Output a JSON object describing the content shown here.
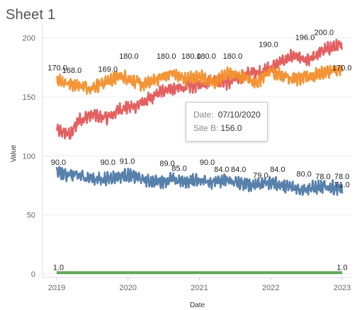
{
  "sheet": {
    "title": "Sheet 1"
  },
  "tooltip": {
    "date_label": "Date:",
    "date_value": "07/10/2020",
    "series_label": "Site B:",
    "series_value": "156.0"
  },
  "chart_data": {
    "type": "line",
    "xlabel": "Date",
    "ylabel": "Value",
    "x_ticks": [
      "2019",
      "2020",
      "2021",
      "2022",
      "2023"
    ],
    "x_range": [
      "2019-01-01",
      "2023-01-01"
    ],
    "y_ticks": [
      0,
      50,
      100,
      150,
      200
    ],
    "ylim": [
      -3,
      207
    ],
    "grid": "horizontal",
    "legend": "none",
    "series": [
      {
        "color": "#e15759",
        "keyframes": [
          [
            2019.0,
            122
          ],
          [
            2019.2,
            118
          ],
          [
            2019.3,
            130
          ],
          [
            2019.5,
            135
          ],
          [
            2019.7,
            132
          ],
          [
            2019.9,
            140
          ],
          [
            2020.1,
            142
          ],
          [
            2020.3,
            148
          ],
          [
            2020.5,
            156
          ],
          [
            2020.8,
            158
          ],
          [
            2021.0,
            160
          ],
          [
            2021.2,
            165
          ],
          [
            2021.4,
            162
          ],
          [
            2021.7,
            170
          ],
          [
            2021.9,
            172
          ],
          [
            2022.1,
            178
          ],
          [
            2022.3,
            185
          ],
          [
            2022.5,
            180
          ],
          [
            2022.7,
            188
          ],
          [
            2022.85,
            192
          ],
          [
            2023.0,
            193
          ]
        ],
        "labels": [
          {
            "x": "2021-12-20",
            "value": "190.0"
          },
          {
            "x": "2022-06-25",
            "value": "196.0"
          },
          {
            "x": "2022-09-30",
            "value": "200.0"
          }
        ]
      },
      {
        "color": "#f28e2b",
        "keyframes": [
          [
            2019.0,
            165
          ],
          [
            2019.15,
            162
          ],
          [
            2019.3,
            160
          ],
          [
            2019.5,
            158
          ],
          [
            2019.7,
            163
          ],
          [
            2019.9,
            168
          ],
          [
            2020.0,
            166
          ],
          [
            2020.2,
            160
          ],
          [
            2020.4,
            165
          ],
          [
            2020.6,
            170
          ],
          [
            2020.8,
            165
          ],
          [
            2021.0,
            168
          ],
          [
            2021.2,
            162
          ],
          [
            2021.4,
            170
          ],
          [
            2021.6,
            168
          ],
          [
            2021.8,
            162
          ],
          [
            2022.0,
            172
          ],
          [
            2022.2,
            168
          ],
          [
            2022.4,
            165
          ],
          [
            2022.6,
            168
          ],
          [
            2022.8,
            172
          ],
          [
            2023.0,
            172
          ]
        ],
        "labels": [
          {
            "x": "2019-01-05",
            "value": "170.0"
          },
          {
            "x": "2019-03-20",
            "value": "168.0"
          },
          {
            "x": "2019-09-20",
            "value": "169.0"
          },
          {
            "x": "2020-01-05",
            "value": "180.0"
          },
          {
            "x": "2020-07-15",
            "value": "180.0"
          },
          {
            "x": "2020-11-20",
            "value": "180.0"
          },
          {
            "x": "2021-02-05",
            "value": "180.0"
          },
          {
            "x": "2021-06-20",
            "value": "180.0"
          },
          {
            "x": "2022-12-31",
            "value": "170.0"
          }
        ]
      },
      {
        "color": "#4e79a7",
        "keyframes": [
          [
            2019.0,
            86
          ],
          [
            2019.2,
            84
          ],
          [
            2019.4,
            82
          ],
          [
            2019.6,
            80
          ],
          [
            2019.8,
            82
          ],
          [
            2020.0,
            84
          ],
          [
            2020.2,
            80
          ],
          [
            2020.4,
            78
          ],
          [
            2020.6,
            80
          ],
          [
            2020.8,
            78
          ],
          [
            2021.0,
            80
          ],
          [
            2021.2,
            78
          ],
          [
            2021.4,
            79
          ],
          [
            2021.6,
            76
          ],
          [
            2021.8,
            76
          ],
          [
            2022.0,
            78
          ],
          [
            2022.2,
            74
          ],
          [
            2022.4,
            72
          ],
          [
            2022.6,
            73
          ],
          [
            2022.8,
            74
          ],
          [
            2023.0,
            72
          ]
        ],
        "labels": [
          {
            "x": "2019-01-10",
            "value": "90.0"
          },
          {
            "x": "2019-09-20",
            "value": "90.0"
          },
          {
            "x": "2019-12-28",
            "value": "91.0"
          },
          {
            "x": "2020-07-20",
            "value": "89.0"
          },
          {
            "x": "2020-09-20",
            "value": "85.0"
          },
          {
            "x": "2021-02-10",
            "value": "90.0"
          },
          {
            "x": "2021-04-25",
            "value": "84.0"
          },
          {
            "x": "2021-07-20",
            "value": "84.0"
          },
          {
            "x": "2021-11-10",
            "value": "79.0"
          },
          {
            "x": "2022-02-05",
            "value": "84.0"
          },
          {
            "x": "2022-06-20",
            "value": "80.0"
          },
          {
            "x": "2022-09-25",
            "value": "78.0"
          },
          {
            "x": "2022-12-31",
            "value": "78.0"
          },
          {
            "x": "2023-01-01",
            "value": "71.0"
          }
        ]
      },
      {
        "color": "#59a14f",
        "keyframes": [
          [
            2019.0,
            1
          ],
          [
            2023.0,
            1
          ]
        ],
        "labels": [
          {
            "x": "2019-01-10",
            "value": "1.0"
          },
          {
            "x": "2023-01-01",
            "value": "1.0"
          }
        ]
      }
    ]
  }
}
